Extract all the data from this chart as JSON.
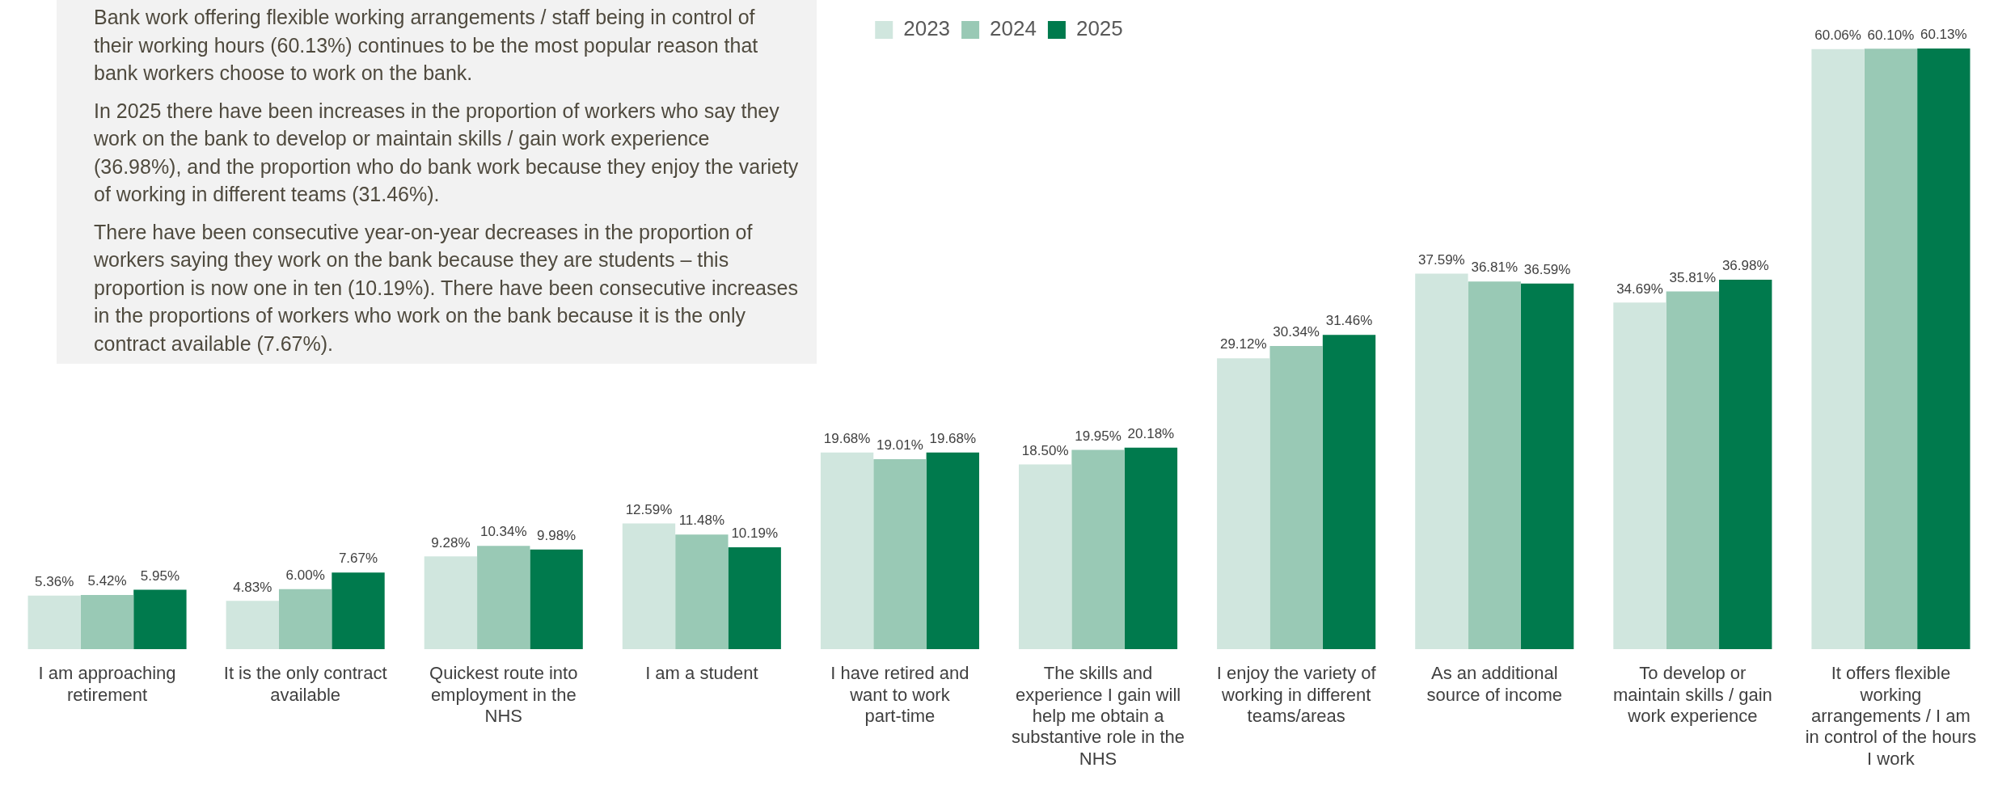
{
  "chart_data": {
    "type": "bar",
    "categories": [
      "I am approaching retirement",
      "It is the only contract available",
      "Quickest route into employment in the NHS",
      "I am a student",
      "I have retired and want to work part-time",
      "The skills and experience I gain will help me obtain a substantive role in the NHS",
      "I enjoy the variety of working in different teams/areas",
      "As an additional source of income",
      "To develop or maintain skills / gain work experience",
      "It offers flexible working arrangements / I am in control of the hours I work"
    ],
    "series": [
      {
        "name": "2023",
        "color": "#d0e6de",
        "values": [
          5.36,
          4.83,
          9.28,
          12.59,
          19.68,
          18.5,
          29.12,
          37.59,
          34.69,
          60.06
        ],
        "value_labels": [
          "5.36%",
          "4.83%",
          "9.28%",
          "12.59%",
          "19.68%",
          "18.50%",
          "29.12%",
          "37.59%",
          "34.69%",
          "60.06%"
        ]
      },
      {
        "name": "2024",
        "color": "#99c9b5",
        "values": [
          5.42,
          6.0,
          10.34,
          11.48,
          19.01,
          19.95,
          30.34,
          36.81,
          35.81,
          60.1
        ],
        "value_labels": [
          "5.42%",
          "6.00%",
          "10.34%",
          "11.48%",
          "19.01%",
          "19.95%",
          "30.34%",
          "36.81%",
          "35.81%",
          "60.10%"
        ]
      },
      {
        "name": "2025",
        "color": "#007a4d",
        "values": [
          5.95,
          7.67,
          9.98,
          10.19,
          19.68,
          20.18,
          31.46,
          36.59,
          36.98,
          60.13
        ],
        "value_labels": [
          "5.95%",
          "7.67%",
          "9.98%",
          "10.19%",
          "19.68%",
          "20.18%",
          "31.46%",
          "36.59%",
          "36.98%",
          "60.13%"
        ]
      }
    ],
    "legend": "top",
    "grid": false,
    "annotations": [
      "Bank work offering flexible working arrangements / staff being in control of their working hours (60.13%) continues to be the most popular reason that bank workers choose to work on the bank.",
      "In 2025 there have been increases in the proportion of workers who say they work on the bank to develop or maintain skills / gain work experience (36.98%), and the proportion who do bank work because they enjoy the variety of working in different teams (31.46%).",
      "There have been consecutive year-on-year decreases in the proportion of workers saying they work on the bank because they are students – this proportion is now one in ten (10.19%). There have been consecutive increases in the proportions of workers who work on the bank because it is the only contract available (7.67%)."
    ]
  }
}
